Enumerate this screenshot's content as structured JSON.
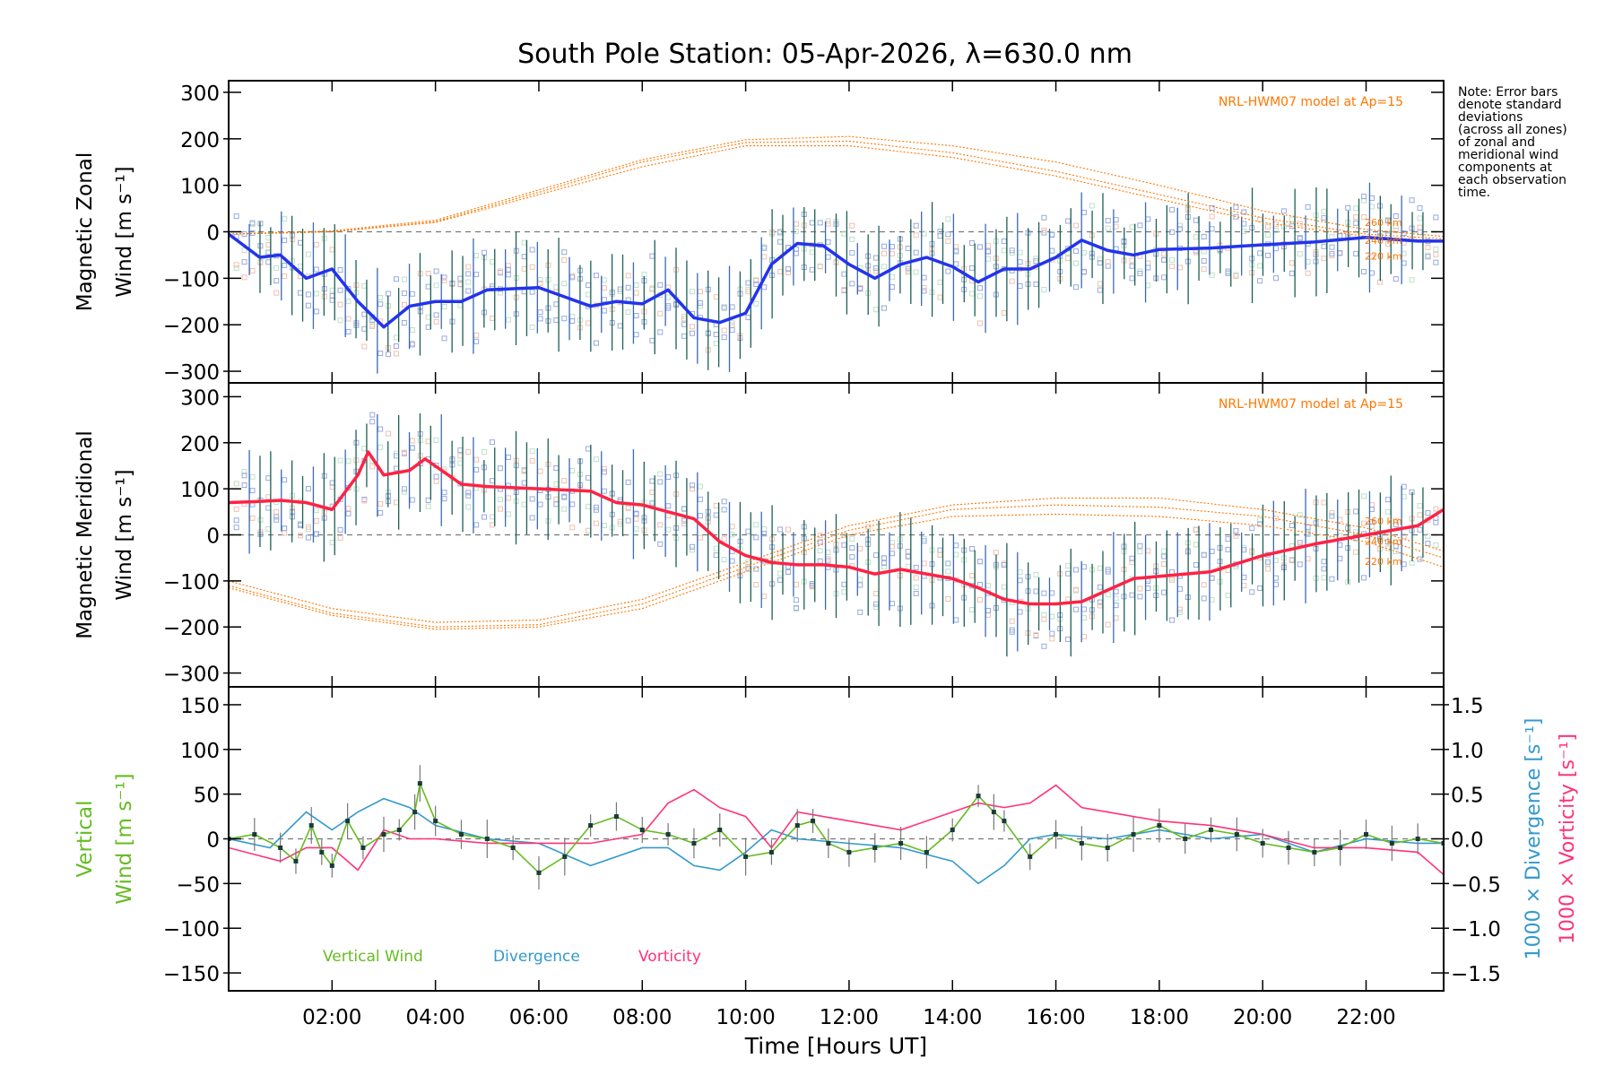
{
  "title": "South Pole Station: 05-Apr-2026, λ=630.0 nm",
  "note_lines": [
    "Note: Error bars",
    "denote standard",
    "deviations",
    "(across all zones)",
    "of zonal and",
    "meridional wind",
    "components at",
    "each observation",
    "time."
  ],
  "x_axis": {
    "label": "Time [Hours UT]",
    "range": [
      0,
      23.5
    ],
    "ticks": [
      2,
      4,
      6,
      8,
      10,
      12,
      14,
      16,
      18,
      20,
      22
    ],
    "tick_labels": [
      "02:00",
      "04:00",
      "06:00",
      "08:00",
      "10:00",
      "12:00",
      "14:00",
      "16:00",
      "18:00",
      "20:00",
      "22:00"
    ]
  },
  "colors": {
    "zonal": "#2233ee",
    "meridional": "#ff2244",
    "model": "#ff7700",
    "vertical": "#66bb22",
    "divergence": "#3399cc",
    "vorticity": "#ff3377",
    "errorbar": "#1a6055"
  },
  "chart_data": [
    {
      "type": "line",
      "panel": "zonal",
      "ylabel_line1": "Magnetic Zonal",
      "ylabel_line2": "Wind [m s⁻¹]",
      "ylim": [
        -325,
        325
      ],
      "yticks": [
        -300,
        -200,
        -100,
        0,
        100,
        200,
        300
      ],
      "ytick_labels": [
        "−300",
        "−200",
        "−100",
        "0",
        "100",
        "200",
        "300"
      ],
      "model_label": "NRL-HWM07 model at Ap=15",
      "model_alt_labels": [
        "260 km",
        "240 km",
        "220 km"
      ],
      "series": [
        {
          "name": "Zonal wind",
          "x": [
            0,
            0.6,
            1,
            1.5,
            2,
            2.5,
            3,
            3.5,
            4,
            4.5,
            5,
            6,
            7,
            7.5,
            8,
            8.5,
            9,
            9.5,
            10,
            10.5,
            11,
            11.5,
            12,
            12.5,
            13,
            13.5,
            14,
            14.5,
            15,
            15.5,
            16,
            16.5,
            17,
            17.5,
            18,
            19,
            20,
            21,
            22,
            23,
            23.5
          ],
          "y": [
            -5,
            -55,
            -50,
            -100,
            -80,
            -150,
            -205,
            -160,
            -150,
            -150,
            -125,
            -120,
            -160,
            -150,
            -155,
            -125,
            -185,
            -195,
            -175,
            -70,
            -25,
            -30,
            -70,
            -100,
            -70,
            -55,
            -75,
            -108,
            -80,
            -80,
            -55,
            -18,
            -40,
            -50,
            -38,
            -35,
            -28,
            -22,
            -12,
            -20,
            -20
          ]
        },
        {
          "name": "Model 220 km",
          "x": [
            0,
            2,
            4,
            6,
            8,
            10,
            12,
            14,
            16,
            18,
            20,
            22,
            23.5
          ],
          "y": [
            -5,
            0,
            20,
            80,
            140,
            185,
            185,
            160,
            120,
            70,
            20,
            -10,
            -20
          ]
        },
        {
          "name": "Model 240 km",
          "x": [
            0,
            2,
            4,
            6,
            8,
            10,
            12,
            14,
            16,
            18,
            20,
            22,
            23.5
          ],
          "y": [
            -5,
            0,
            22,
            85,
            150,
            192,
            195,
            170,
            130,
            80,
            30,
            -5,
            -15
          ]
        },
        {
          "name": "Model 260 km",
          "x": [
            0,
            2,
            4,
            6,
            8,
            10,
            12,
            14,
            16,
            18,
            20,
            22,
            23.5
          ],
          "y": [
            -5,
            2,
            25,
            90,
            155,
            198,
            205,
            185,
            150,
            100,
            45,
            5,
            -10
          ]
        }
      ]
    },
    {
      "type": "line",
      "panel": "meridional",
      "ylabel_line1": "Magnetic Meridional",
      "ylabel_line2": "Wind [m s⁻¹]",
      "ylim": [
        -330,
        330
      ],
      "yticks": [
        -300,
        -200,
        -100,
        0,
        100,
        200,
        300
      ],
      "ytick_labels": [
        "−300",
        "−200",
        "−100",
        "0",
        "100",
        "200",
        "300"
      ],
      "model_label": "NRL-HWM07 model at Ap=15",
      "model_alt_labels": [
        "260 km",
        "240 km",
        "220 km"
      ],
      "series": [
        {
          "name": "Meridional wind",
          "x": [
            0,
            0.5,
            1,
            1.5,
            2,
            2.5,
            2.7,
            3,
            3.5,
            3.8,
            4.5,
            5,
            6,
            7,
            7.5,
            8,
            8.5,
            9,
            9.5,
            10,
            10.5,
            11,
            11.5,
            12,
            12.5,
            13,
            13.5,
            14,
            14.5,
            15,
            15.5,
            16,
            16.5,
            17,
            17.5,
            18,
            19,
            20,
            21,
            22,
            23,
            23.5
          ],
          "y": [
            70,
            72,
            75,
            70,
            55,
            130,
            180,
            130,
            140,
            165,
            110,
            105,
            100,
            95,
            70,
            65,
            50,
            35,
            -15,
            -45,
            -60,
            -65,
            -65,
            -70,
            -85,
            -75,
            -85,
            -95,
            -115,
            -140,
            -150,
            -150,
            -145,
            -120,
            -95,
            -90,
            -80,
            -45,
            -20,
            0,
            20,
            55
          ]
        },
        {
          "name": "Model 220 km",
          "x": [
            0,
            2,
            4,
            6,
            8,
            10,
            12,
            14,
            16,
            18,
            20,
            22,
            23.5
          ],
          "y": [
            -115,
            -175,
            -205,
            -200,
            -160,
            -80,
            0,
            40,
            45,
            40,
            20,
            -15,
            -70
          ]
        },
        {
          "name": "Model 240 km",
          "x": [
            0,
            2,
            4,
            6,
            8,
            10,
            12,
            14,
            16,
            18,
            20,
            22,
            23.5
          ],
          "y": [
            -110,
            -170,
            -200,
            -195,
            -150,
            -70,
            10,
            55,
            65,
            60,
            40,
            0,
            -50
          ]
        },
        {
          "name": "Model 260 km",
          "x": [
            0,
            2,
            4,
            6,
            8,
            10,
            12,
            14,
            16,
            18,
            20,
            22,
            23.5
          ],
          "y": [
            -100,
            -160,
            -190,
            -185,
            -140,
            -60,
            20,
            65,
            80,
            80,
            55,
            15,
            -35
          ]
        }
      ]
    },
    {
      "type": "line",
      "panel": "vertical",
      "ylabel_line1": "Vertical",
      "ylabel_line2": "Wind [m s⁻¹]",
      "ylim": [
        -170,
        170
      ],
      "yticks": [
        -150,
        -100,
        -50,
        0,
        50,
        100,
        150
      ],
      "ytick_labels": [
        "−150",
        "−100",
        "−50",
        "0",
        "50",
        "100",
        "150"
      ],
      "y2_label_div": "1000 × Divergence [s⁻¹]",
      "y2_label_vort": "1000 × Vorticity [s⁻¹]",
      "y2lim": [
        -1.7,
        1.7
      ],
      "y2ticks": [
        -1.5,
        -1.0,
        -0.5,
        0.0,
        0.5,
        1.0,
        1.5
      ],
      "y2tick_labels": [
        "−1.5",
        "−1.0",
        "−0.5",
        "0.0",
        "0.5",
        "1.0",
        "1.5"
      ],
      "legend": [
        "Vertical Wind",
        "Divergence",
        "Vorticity"
      ],
      "series": [
        {
          "name": "Vertical Wind",
          "x": [
            0,
            0.5,
            1,
            1.3,
            1.6,
            1.8,
            2,
            2.3,
            2.6,
            3,
            3.3,
            3.6,
            3.7,
            4,
            4.5,
            5,
            5.5,
            6,
            6.5,
            7,
            7.5,
            8,
            8.5,
            9,
            9.5,
            10,
            10.5,
            11,
            11.3,
            11.6,
            12,
            12.5,
            13,
            13.5,
            14,
            14.5,
            14.8,
            15,
            15.5,
            16,
            16.5,
            17,
            17.5,
            18,
            18.5,
            19,
            19.5,
            20,
            20.5,
            21,
            21.5,
            22,
            22.5,
            23,
            23.5
          ],
          "y": [
            0,
            5,
            -10,
            -25,
            15,
            -15,
            -30,
            20,
            -10,
            5,
            10,
            30,
            62,
            20,
            5,
            0,
            -10,
            -38,
            -20,
            15,
            25,
            10,
            5,
            -5,
            10,
            -20,
            -15,
            15,
            20,
            -5,
            -15,
            -10,
            -5,
            -15,
            10,
            48,
            30,
            20,
            -20,
            5,
            -5,
            -10,
            5,
            15,
            0,
            10,
            5,
            -5,
            -10,
            -15,
            -10,
            5,
            -5,
            0,
            -5
          ]
        },
        {
          "name": "Divergence",
          "x": [
            0,
            0.8,
            1.5,
            2,
            2.5,
            3,
            3.5,
            4,
            5,
            6,
            7,
            8,
            8.5,
            9,
            9.5,
            10,
            10.5,
            11,
            12,
            13,
            14,
            14.5,
            15,
            15.5,
            16,
            17,
            18,
            19,
            20,
            21,
            22,
            23,
            23.5
          ],
          "y": [
            0.0,
            -0.1,
            0.3,
            0.1,
            0.3,
            0.45,
            0.35,
            0.15,
            0.0,
            -0.05,
            -0.3,
            -0.1,
            -0.1,
            -0.3,
            -0.35,
            -0.15,
            0.1,
            0.0,
            -0.05,
            -0.1,
            -0.25,
            -0.5,
            -0.3,
            0.0,
            0.05,
            0.0,
            0.1,
            0.0,
            0.05,
            -0.15,
            0.0,
            -0.05,
            -0.05
          ]
        },
        {
          "name": "Vorticity",
          "x": [
            0,
            1,
            1.5,
            2,
            2.5,
            3,
            3.5,
            4,
            5,
            6,
            7,
            8,
            8.5,
            9,
            9.5,
            10,
            10.5,
            11,
            12,
            13,
            14,
            14.5,
            15,
            15.5,
            16,
            16.5,
            17,
            18,
            19,
            20,
            21,
            22,
            23,
            23.5
          ],
          "y": [
            -0.1,
            -0.25,
            -0.1,
            -0.1,
            -0.35,
            0.1,
            0.0,
            0.0,
            -0.05,
            -0.05,
            -0.05,
            0.05,
            0.4,
            0.55,
            0.35,
            0.25,
            -0.1,
            0.3,
            0.2,
            0.1,
            0.3,
            0.4,
            0.35,
            0.4,
            0.6,
            0.35,
            0.3,
            0.2,
            0.15,
            0.05,
            -0.1,
            -0.1,
            -0.15,
            -0.4
          ]
        }
      ]
    }
  ]
}
